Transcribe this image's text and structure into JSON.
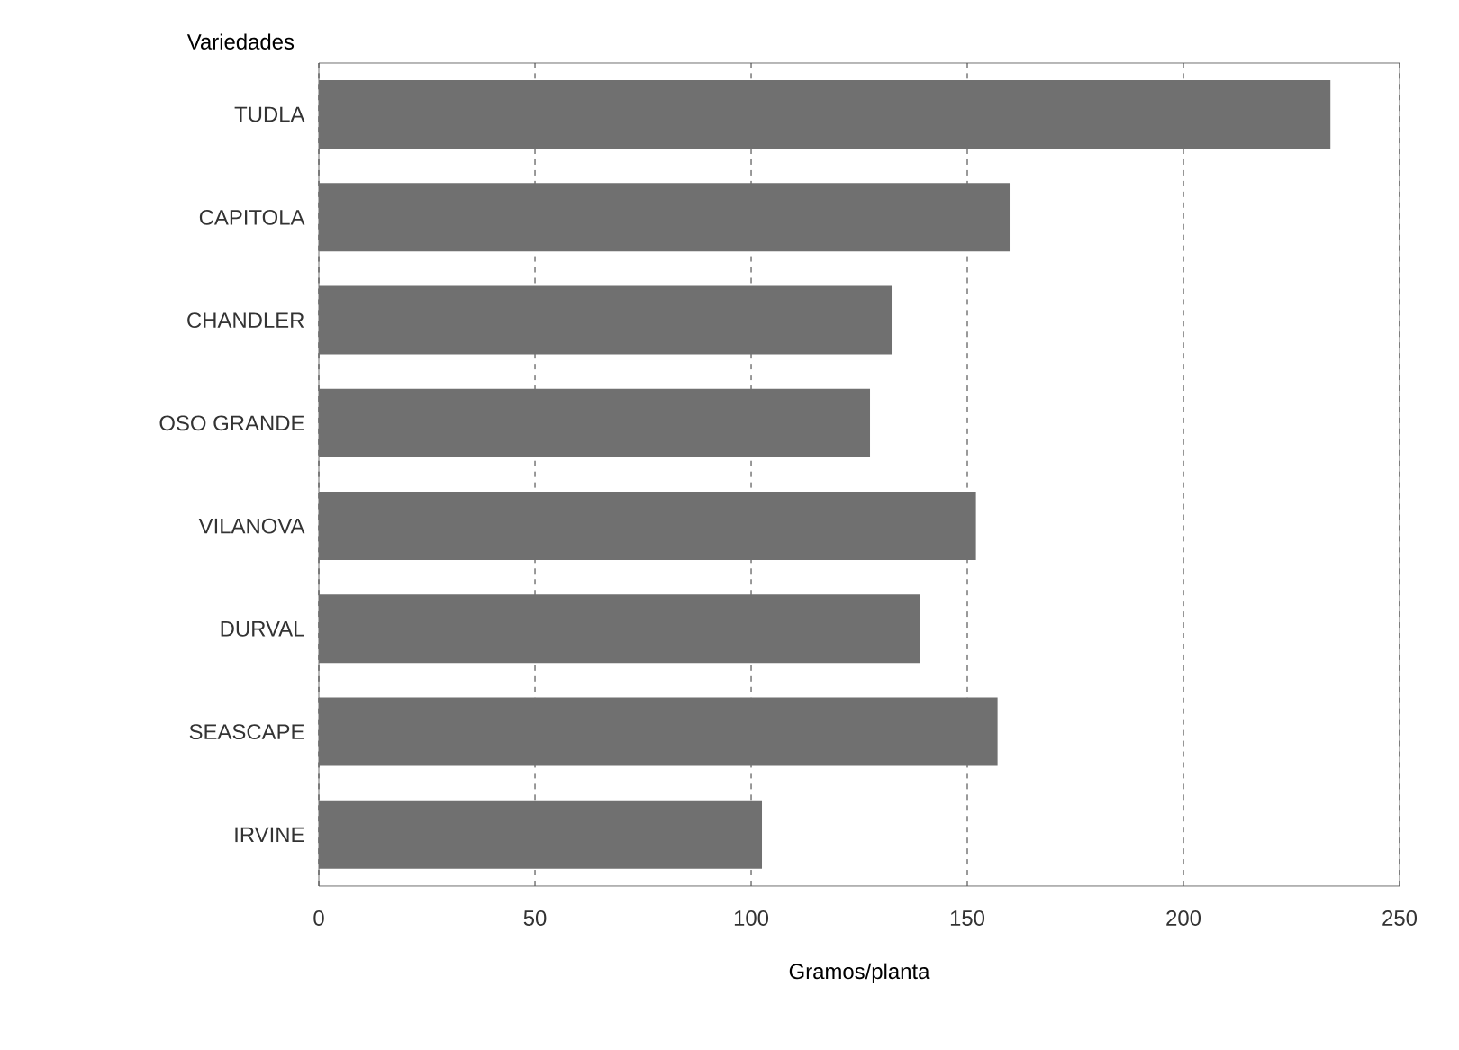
{
  "chart_data": {
    "type": "bar",
    "orientation": "horizontal",
    "ylabel": "Variedades",
    "xlabel": "Gramos/planta",
    "categories": [
      "TUDLA",
      "CAPITOLA",
      "CHANDLER",
      "OSO GRANDE",
      "VILANOVA",
      "DURVAL",
      "SEASCAPE",
      "IRVINE"
    ],
    "values": [
      234,
      160,
      132.5,
      127.5,
      152,
      139,
      157,
      102.5
    ],
    "color": "#707070",
    "xlim": [
      0,
      250
    ],
    "xticks": [
      0,
      50,
      100,
      150,
      200,
      250
    ],
    "grid": "x"
  }
}
